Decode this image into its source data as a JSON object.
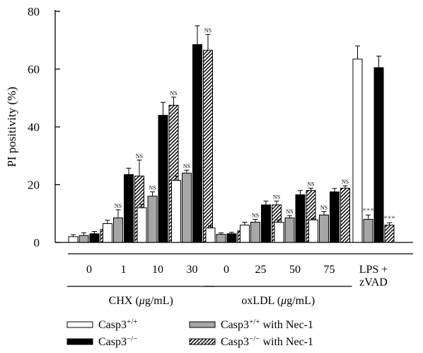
{
  "chart_data": {
    "type": "bar",
    "ylabel": "PI positivity (%)",
    "ylim": [
      0,
      80
    ],
    "yticks": [
      0,
      20,
      40,
      60,
      80
    ],
    "grid": false,
    "legend_position": "bottom",
    "colors": {
      "ink": "#000000",
      "wt_fill": "#ffffff",
      "wt_nec_fill": "#a6a6a6",
      "ko_fill": "#000000",
      "ko_nec_fill": "#ffffff"
    },
    "series": [
      {
        "name_base": "Casp3",
        "name_sup": "+/+",
        "name_suffix": "",
        "pattern": "open"
      },
      {
        "name_base": "Casp3",
        "name_sup": "+/+",
        "name_suffix": " with Nec-1",
        "pattern": "gray"
      },
      {
        "name_base": "Casp3",
        "name_sup": "−/−",
        "name_suffix": "",
        "pattern": "solid"
      },
      {
        "name_base": "Casp3",
        "name_sup": "−/−",
        "name_suffix": " with Nec-1",
        "pattern": "hatch"
      }
    ],
    "groups": [
      {
        "label": "0",
        "values": [
          2.0,
          2.4,
          3.0,
          4.5
        ],
        "errors": [
          0.7,
          0.9,
          0.8,
          1.8
        ],
        "marks": [
          "",
          "",
          "",
          ""
        ]
      },
      {
        "label": "1",
        "values": [
          6.5,
          8.5,
          23.5,
          23.0
        ],
        "errors": [
          1.2,
          2.8,
          2.2,
          5.5
        ],
        "marks": [
          "",
          "NS",
          "",
          "NS"
        ]
      },
      {
        "label": "10",
        "values": [
          12.0,
          16.0,
          44.0,
          47.5
        ],
        "errors": [
          1.2,
          1.5,
          4.5,
          2.8
        ],
        "marks": [
          "",
          "NS",
          "",
          "NS"
        ]
      },
      {
        "label": "30",
        "values": [
          21.5,
          24.0,
          68.5,
          66.5
        ],
        "errors": [
          1.5,
          1.0,
          6.5,
          5.5
        ],
        "marks": [
          "",
          "NS",
          "",
          "NS"
        ]
      },
      {
        "label": "0",
        "values": [
          5.0,
          2.8,
          3.0,
          4.0
        ],
        "errors": [
          0.8,
          0.5,
          0.5,
          0.5
        ],
        "marks": [
          "",
          "",
          "",
          ""
        ]
      },
      {
        "label": "25",
        "values": [
          6.0,
          7.0,
          13.0,
          13.0
        ],
        "errors": [
          1.0,
          1.0,
          1.3,
          1.3
        ],
        "marks": [
          "",
          "NS",
          "",
          "NS"
        ]
      },
      {
        "label": "50",
        "values": [
          7.0,
          8.5,
          16.5,
          18.0
        ],
        "errors": [
          0.8,
          0.8,
          1.5,
          0.8
        ],
        "marks": [
          "",
          "NS",
          "",
          "NS"
        ]
      },
      {
        "label": "75",
        "values": [
          7.8,
          9.5,
          17.5,
          18.8
        ],
        "errors": [
          0.5,
          1.2,
          1.2,
          0.8
        ],
        "marks": [
          "",
          "NS",
          "",
          "NS"
        ]
      },
      {
        "label": "LPS +\nzVAD",
        "values": [
          63.5,
          8.0,
          60.5,
          6.0
        ],
        "errors": [
          4.5,
          1.5,
          4.0,
          0.8
        ],
        "marks": [
          "",
          "***",
          "",
          "***"
        ]
      }
    ],
    "treatments": [
      {
        "label": "CHX (",
        "unit_mu": "μ",
        "unit_rest": "g/mL)",
        "groups": [
          0,
          1,
          2,
          3
        ]
      },
      {
        "label": "oxLDL (",
        "unit_mu": "μ",
        "unit_rest": "g/mL)",
        "groups": [
          4,
          5,
          6,
          7
        ]
      }
    ]
  }
}
